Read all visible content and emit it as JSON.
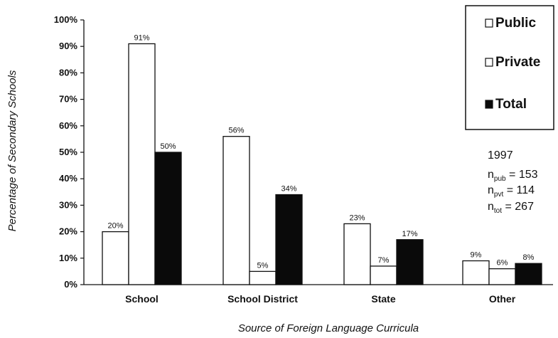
{
  "chart_data": {
    "type": "bar",
    "title": "",
    "xlabel": "Source of Foreign Language Curricula",
    "ylabel": "Percentage of Secondary Schools",
    "categories": [
      "School",
      "School District",
      "State",
      "Other"
    ],
    "series": [
      {
        "name": "Public",
        "values": [
          20,
          56,
          23,
          9
        ],
        "labels": [
          "20%",
          "56%",
          "23%",
          "9%"
        ]
      },
      {
        "name": "Private",
        "values": [
          91,
          5,
          7,
          6
        ],
        "labels": [
          "91%",
          "5%",
          "7%",
          "6%"
        ]
      },
      {
        "name": "Total",
        "values": [
          50,
          34,
          17,
          8
        ],
        "labels": [
          "50%",
          "34%",
          "17%",
          "8%"
        ]
      }
    ],
    "ylim": [
      0,
      100
    ],
    "yticks": [
      "0%",
      "10%",
      "20%",
      "30%",
      "40%",
      "50%",
      "60%",
      "70%",
      "80%",
      "90%",
      "100%"
    ],
    "legend_position": "top-right",
    "grid": false,
    "colors": {
      "Public": "#ffffff",
      "Private": "#ffffff",
      "Total": "#0a0a0a"
    },
    "note": {
      "year": "1997",
      "lines": [
        {
          "prefix": "n",
          "sub": "pub",
          "text": " = 153"
        },
        {
          "prefix": "n",
          "sub": "pvt",
          "text": " =  114"
        },
        {
          "prefix": "n",
          "sub": "tot",
          "text": " = 267"
        }
      ]
    }
  }
}
